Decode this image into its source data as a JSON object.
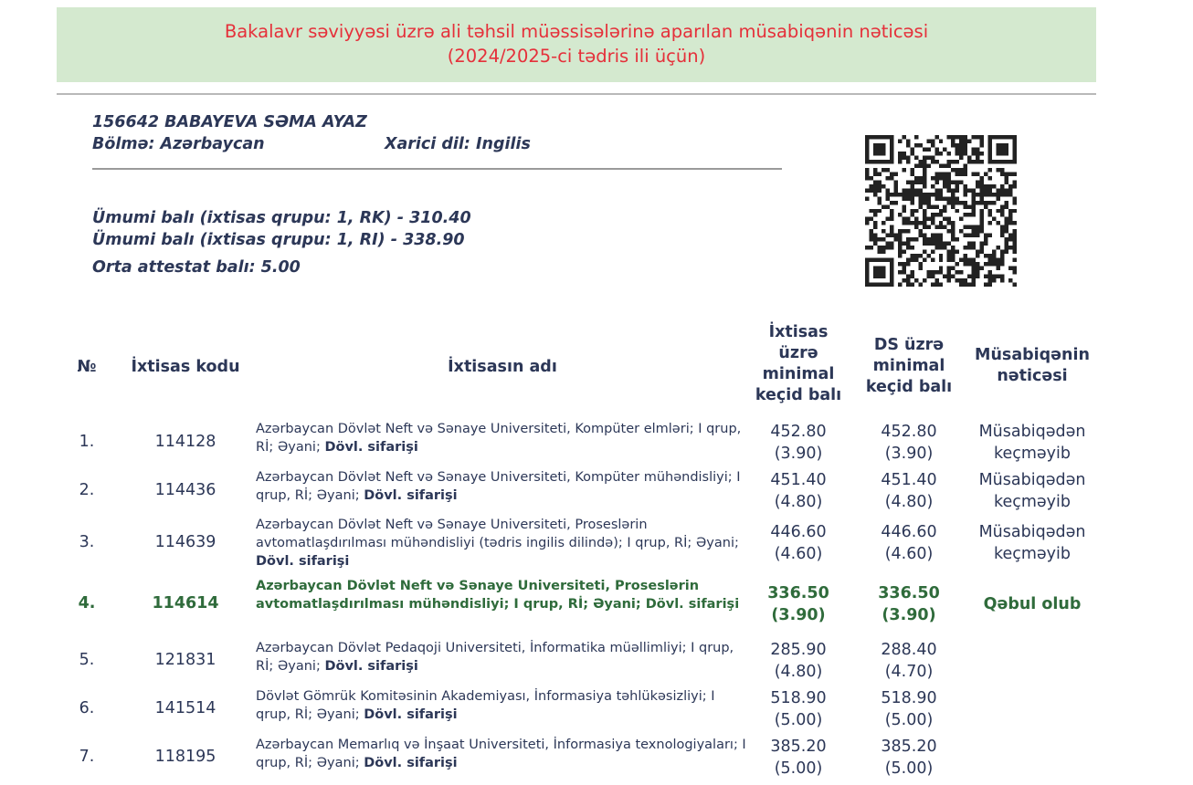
{
  "header": {
    "title_line1": "Bakalavr səviyyəsi üzrə ali təhsil müəssisələrinə aparılan müsabiqənin nəticəsi",
    "title_line2": "(2024/2025-ci tədris ili üçün)"
  },
  "applicant": {
    "id_name": "156642 BABAYEVA SƏMA AYAZ",
    "section": "Bölmə: Azərbaycan",
    "foreign_language": "Xarici dil: Ingilis",
    "score_rk": "Ümumi balı (ixtisas qrupu: 1, RK) - 310.40",
    "score_ri": "Ümumi balı (ixtisas qrupu: 1, RI) - 338.90",
    "attestat": "Orta attestat balı: 5.00"
  },
  "qr_icon": "qr-code",
  "colors": {
    "banner_bg": "#d4e9cf",
    "banner_text": "#e5303a",
    "text": "#2c3757",
    "accepted": "#2f6b3b"
  },
  "table": {
    "headers": {
      "no": "№",
      "code": "İxtisas kodu",
      "name": "İxtisasın adı",
      "min": "İxtisas üzrə minimal keçid balı",
      "ds": "DS üzrə minimal keçid balı",
      "result": "Müsabiqənin nəticəsi"
    },
    "rows": [
      {
        "no": "1.",
        "code": "114128",
        "name": "Azərbaycan Dövlət Neft və Sənaye Universiteti, Kompüter elmləri; I qrup, Rİ; Əyani; ",
        "bold": "Dövl. sifarişi",
        "min": "452.80",
        "min_sub": "(3.90)",
        "ds": "452.80",
        "ds_sub": "(3.90)",
        "result": "Müsabiqədən keçməyib"
      },
      {
        "no": "2.",
        "code": "114436",
        "name": "Azərbaycan Dövlət Neft və Sənaye Universiteti, Kompüter mühəndisliyi; I qrup, Rİ; Əyani; ",
        "bold": "Dövl. sifarişi",
        "min": "451.40",
        "min_sub": "(4.80)",
        "ds": "451.40",
        "ds_sub": "(4.80)",
        "result": "Müsabiqədən keçməyib"
      },
      {
        "no": "3.",
        "code": "114639",
        "name": "Azərbaycan Dövlət Neft və Sənaye Universiteti, Proseslərin avtomatlaşdırılması mühəndisliyi (tədris ingilis dilində); I qrup, Rİ; Əyani; ",
        "bold": "Dövl. sifarişi",
        "min": "446.60",
        "min_sub": "(4.60)",
        "ds": "446.60",
        "ds_sub": "(4.60)",
        "result": "Müsabiqədən keçməyib"
      },
      {
        "no": "4.",
        "code": "114614",
        "name": "Azərbaycan Dövlət Neft və Sənaye Universiteti, Proseslərin avtomatlaşdırılması mühəndisliyi; I qrup, Rİ; Əyani; ",
        "bold": "Dövl. sifarişi",
        "min": "336.50",
        "min_sub": "(3.90)",
        "ds": "336.50",
        "ds_sub": "(3.90)",
        "result": "Qəbul olub",
        "accepted": true
      },
      {
        "no": "5.",
        "code": "121831",
        "name": "Azərbaycan Dövlət Pedaqoji Universiteti, İnformatika müəllimliyi; I qrup, Rİ; Əyani; ",
        "bold": "Dövl. sifarişi",
        "min": "285.90",
        "min_sub": "(4.80)",
        "ds": "288.40",
        "ds_sub": "(4.70)",
        "result": ""
      },
      {
        "no": "6.",
        "code": "141514",
        "name": "Dövlət Gömrük Komitəsinin Akademiyası, İnformasiya təhlükəsizliyi; I qrup, Rİ; Əyani; ",
        "bold": "Dövl. sifarişi",
        "min": "518.90",
        "min_sub": "(5.00)",
        "ds": "518.90",
        "ds_sub": "(5.00)",
        "result": ""
      },
      {
        "no": "7.",
        "code": "118195",
        "name": "Azərbaycan Memarlıq və İnşaat Universiteti, İnformasiya texnologiyaları; I qrup, Rİ; Əyani; ",
        "bold": "Dövl. sifarişi",
        "min": "385.20",
        "min_sub": "(5.00)",
        "ds": "385.20",
        "ds_sub": "(5.00)",
        "result": ""
      }
    ]
  }
}
